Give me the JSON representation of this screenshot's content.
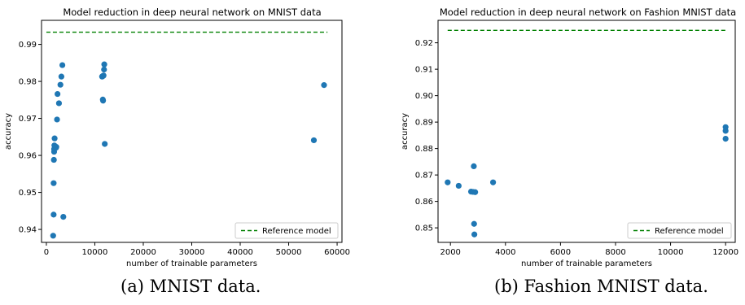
{
  "chart_data": [
    {
      "type": "scatter",
      "title": "Model reduction in deep neural network on MNIST data",
      "xlabel": "number of trainable parameters",
      "ylabel": "accuracy",
      "xlim": [
        -1000,
        61000
      ],
      "ylim": [
        0.9365,
        0.9965
      ],
      "xticks": [
        0,
        10000,
        20000,
        30000,
        40000,
        50000,
        60000
      ],
      "yticks": [
        0.94,
        0.95,
        0.96,
        0.97,
        0.98,
        0.99
      ],
      "grid": false,
      "legend": "bottom-right",
      "colors": {
        "points": "#1f77b4",
        "reference": "#008000"
      },
      "series": [
        {
          "kind": "points",
          "x": [
            1400,
            1500,
            1500,
            1550,
            1600,
            1600,
            1650,
            1700,
            1750,
            2000,
            2050,
            2200,
            2300,
            2600,
            2900,
            3100,
            3300,
            3500,
            11500,
            11600,
            11650,
            11700,
            11750,
            11800,
            11900,
            11950,
            12050,
            55200,
            57300
          ],
          "y": [
            0.9383,
            0.944,
            0.9525,
            0.9588,
            0.961,
            0.9617,
            0.9627,
            0.9646,
            0.9619,
            0.9621,
            0.9623,
            0.9697,
            0.9766,
            0.9741,
            0.9791,
            0.9813,
            0.9844,
            0.9434,
            0.9813,
            0.9814,
            0.9751,
            0.9748,
            0.9815,
            0.9816,
            0.9832,
            0.9846,
            0.9631,
            0.9641,
            0.979
          ]
        },
        {
          "kind": "reference",
          "name": "Reference model",
          "x": [
            0,
            58000
          ],
          "y": [
            0.9933,
            0.9933
          ]
        }
      ]
    },
    {
      "type": "scatter",
      "title": "Model reduction in deep neural network on Fashion MNIST data",
      "xlabel": "number of trainable parameters",
      "ylabel": "accuracy",
      "xlim": [
        1550,
        12350
      ],
      "ylim": [
        0.8445,
        0.9285
      ],
      "xticks": [
        2000,
        4000,
        6000,
        8000,
        10000,
        12000
      ],
      "yticks": [
        0.85,
        0.86,
        0.87,
        0.88,
        0.89,
        0.9,
        0.91,
        0.92
      ],
      "grid": false,
      "legend": "bottom-right",
      "colors": {
        "points": "#1f77b4",
        "reference": "#008000"
      },
      "series": [
        {
          "kind": "points",
          "x": [
            1900,
            2300,
            2750,
            2820,
            2850,
            2860,
            2870,
            2900,
            3550,
            12000,
            12000,
            12000
          ],
          "y": [
            0.8672,
            0.8659,
            0.8637,
            0.8636,
            0.8733,
            0.8515,
            0.8475,
            0.8635,
            0.8672,
            0.8881,
            0.8867,
            0.8837
          ]
        },
        {
          "kind": "reference",
          "name": "Reference model",
          "x": [
            1900,
            12000
          ],
          "y": [
            0.9247,
            0.9247
          ]
        }
      ]
    }
  ],
  "captions": [
    "(a) MNIST data.",
    "(b) Fashion MNIST data."
  ]
}
